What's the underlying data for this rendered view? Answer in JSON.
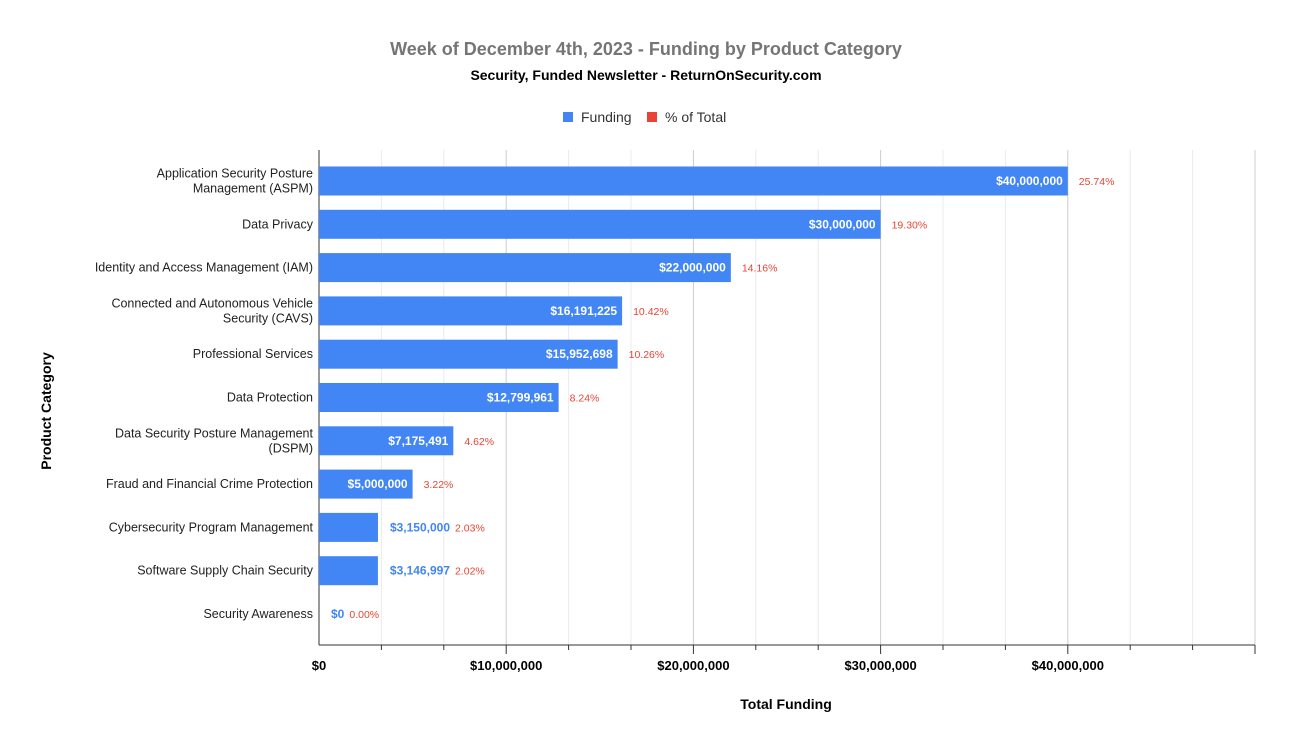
{
  "chart_data": {
    "type": "bar",
    "orientation": "horizontal",
    "title": "Week of December 4th, 2023 - Funding by Product Category",
    "subtitle": "Security, Funded Newsletter - ReturnOnSecurity.com",
    "xlabel": "Total Funding",
    "ylabel": "Product Category",
    "xlim": [
      0,
      50000000
    ],
    "x_ticks": [
      {
        "value": 0,
        "label": "$0"
      },
      {
        "value": 10000000,
        "label": "$10,000,000"
      },
      {
        "value": 20000000,
        "label": "$20,000,000"
      },
      {
        "value": 30000000,
        "label": "$30,000,000"
      },
      {
        "value": 40000000,
        "label": "$40,000,000"
      }
    ],
    "grid": true,
    "legend": {
      "position": "top",
      "entries": [
        {
          "name": "Funding",
          "color": "#4285f4"
        },
        {
          "name": "% of Total",
          "color": "#ea4335"
        }
      ]
    },
    "categories": [
      [
        "Application Security Posture",
        "Management (ASPM)"
      ],
      [
        "Data Privacy"
      ],
      [
        "Identity and Access Management (IAM)"
      ],
      [
        "Connected and Autonomous Vehicle",
        "Security (CAVS)"
      ],
      [
        "Professional Services"
      ],
      [
        "Data Protection"
      ],
      [
        "Data Security Posture Management",
        "(DSPM)"
      ],
      [
        "Fraud and Financial Crime Protection"
      ],
      [
        "Cybersecurity Program Management"
      ],
      [
        "Software Supply Chain Security"
      ],
      [
        "Security Awareness"
      ]
    ],
    "series": [
      {
        "name": "Funding",
        "color": "#4285f4",
        "values": [
          40000000,
          30000000,
          22000000,
          16191225,
          15952698,
          12799961,
          7175491,
          5000000,
          3150000,
          3146997,
          0
        ],
        "labels": [
          "$40,000,000",
          "$30,000,000",
          "$22,000,000",
          "$16,191,225",
          "$15,952,698",
          "$12,799,961",
          "$7,175,491",
          "$5,000,000",
          "$3,150,000",
          "$3,146,997",
          "$0"
        ]
      },
      {
        "name": "% of Total",
        "color": "#ea4335",
        "values": [
          25.74,
          19.3,
          14.16,
          10.42,
          10.26,
          8.24,
          4.62,
          3.22,
          2.03,
          2.02,
          0.0
        ],
        "labels": [
          "25.74%",
          "19.30%",
          "14.16%",
          "10.42%",
          "10.26%",
          "8.24%",
          "4.62%",
          "3.22%",
          "2.03%",
          "2.02%",
          "0.00%"
        ]
      }
    ]
  }
}
